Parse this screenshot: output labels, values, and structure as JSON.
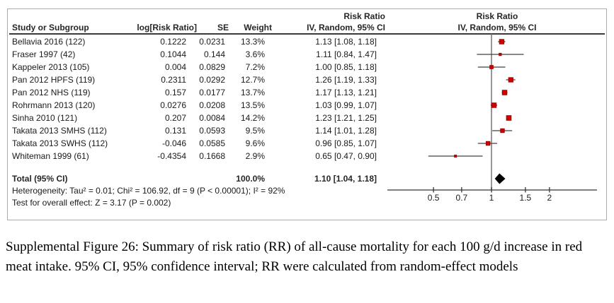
{
  "chart_data": {
    "type": "forest",
    "effect_measure": "Risk Ratio",
    "method": "IV, Random, 95% CI",
    "x_scale": "log",
    "x_ticks": [
      0.5,
      0.7,
      1,
      1.5,
      2
    ],
    "columns": {
      "study": "Study or Subgroup",
      "log_rr": "log[Risk Ratio]",
      "se": "SE",
      "weight": "Weight",
      "estimate_group": "Risk Ratio",
      "estimate": "IV, Random, 95% CI",
      "plot_group": "Risk Ratio",
      "plot": "IV, Random, 95% CI"
    },
    "studies": [
      {
        "name": "Bellavia 2016 (122)",
        "log_rr": 0.1222,
        "se": 0.0231,
        "weight_text": "13.3%",
        "weight_pct": 13.3,
        "rr": 1.13,
        "ci_low": 1.08,
        "ci_high": 1.18,
        "ci_text": "1.13 [1.08, 1.18]"
      },
      {
        "name": "Fraser 1997 (42)",
        "log_rr": 0.1044,
        "se": 0.144,
        "weight_text": "3.6%",
        "weight_pct": 3.6,
        "rr": 1.11,
        "ci_low": 0.84,
        "ci_high": 1.47,
        "ci_text": "1.11 [0.84, 1.47]"
      },
      {
        "name": "Kappeler 2013 (105)",
        "log_rr": 0.004,
        "se": 0.0829,
        "weight_text": "7.2%",
        "weight_pct": 7.2,
        "rr": 1.0,
        "ci_low": 0.85,
        "ci_high": 1.18,
        "ci_text": "1.00 [0.85, 1.18]"
      },
      {
        "name": "Pan 2012 HPFS (119)",
        "log_rr": 0.2311,
        "se": 0.0292,
        "weight_text": "12.7%",
        "weight_pct": 12.7,
        "rr": 1.26,
        "ci_low": 1.19,
        "ci_high": 1.33,
        "ci_text": "1.26 [1.19, 1.33]"
      },
      {
        "name": "Pan 2012 NHS (119)",
        "log_rr": 0.157,
        "se": 0.0177,
        "weight_text": "13.7%",
        "weight_pct": 13.7,
        "rr": 1.17,
        "ci_low": 1.13,
        "ci_high": 1.21,
        "ci_text": "1.17 [1.13, 1.21]"
      },
      {
        "name": "Rohrmann 2013 (120)",
        "log_rr": 0.0276,
        "se": 0.0208,
        "weight_text": "13.5%",
        "weight_pct": 13.5,
        "rr": 1.03,
        "ci_low": 0.99,
        "ci_high": 1.07,
        "ci_text": "1.03 [0.99, 1.07]"
      },
      {
        "name": "Sinha 2010 (121)",
        "log_rr": 0.207,
        "se": 0.0084,
        "weight_text": "14.2%",
        "weight_pct": 14.2,
        "rr": 1.23,
        "ci_low": 1.21,
        "ci_high": 1.25,
        "ci_text": "1.23 [1.21, 1.25]"
      },
      {
        "name": "Takata 2013 SMHS (112)",
        "log_rr": 0.131,
        "se": 0.0593,
        "weight_text": "9.5%",
        "weight_pct": 9.5,
        "rr": 1.14,
        "ci_low": 1.01,
        "ci_high": 1.28,
        "ci_text": "1.14 [1.01, 1.28]"
      },
      {
        "name": "Takata 2013 SWHS (112)",
        "log_rr": -0.046,
        "se": 0.0585,
        "weight_text": "9.6%",
        "weight_pct": 9.6,
        "rr": 0.96,
        "ci_low": 0.85,
        "ci_high": 1.07,
        "ci_text": "0.96 [0.85, 1.07]"
      },
      {
        "name": "Whiteman 1999 (61)",
        "log_rr": -0.4354,
        "se": 0.1668,
        "weight_text": "2.9%",
        "weight_pct": 2.9,
        "rr": 0.65,
        "ci_low": 0.47,
        "ci_high": 0.9,
        "ci_text": "0.65 [0.47, 0.90]"
      }
    ],
    "total": {
      "label": "Total (95% CI)",
      "weight_text": "100.0%",
      "rr": 1.1,
      "ci_low": 1.04,
      "ci_high": 1.18,
      "ci_text": "1.10 [1.04, 1.18]"
    },
    "heterogeneity": "Heterogeneity: Tau² = 0.01; Chi² = 106.92, df = 9 (P < 0.00001); I² = 92%",
    "overall_effect_test": "Test for overall effect: Z = 3.17 (P = 0.002)",
    "colors": {
      "marker_fill": "#d40000",
      "marker_stroke": "#8f0000",
      "ci_line": "#404040",
      "null_line": "#737373",
      "axis": "#333333",
      "diamond": "#000000"
    }
  },
  "caption": "Supplemental Figure 26: Summary of risk ratio (RR) of all-cause mortality for each 100 g/d increase in red meat intake. 95% CI, 95% confidence interval; RR were calculated from random-effect models"
}
